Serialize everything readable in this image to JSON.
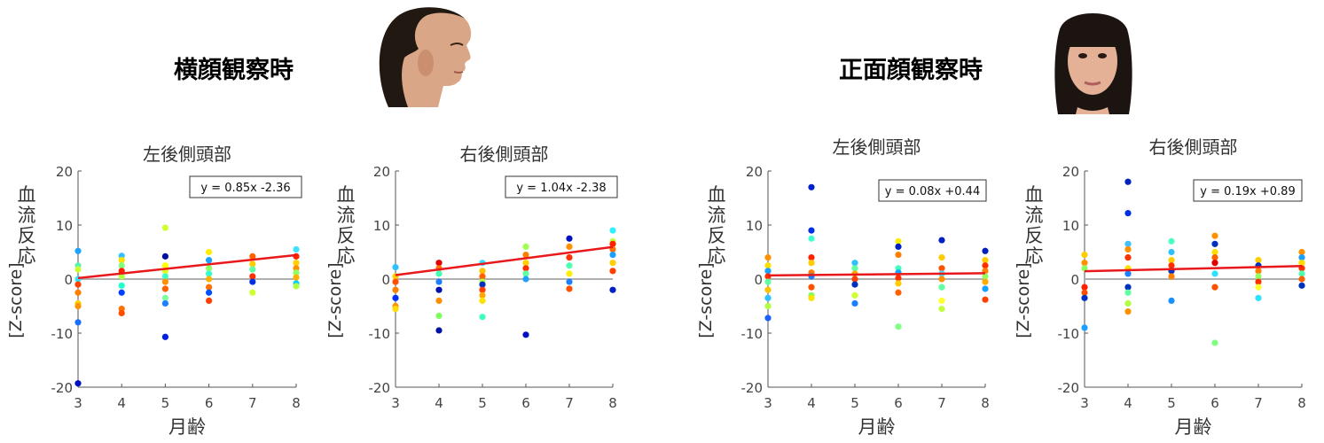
{
  "conditions": [
    {
      "title": "横顔観察時",
      "photo": "profile-face-photo"
    },
    {
      "title": "正面顔観察時",
      "photo": "frontal-face-photo"
    }
  ],
  "colors": {
    "regression": "#e8181b",
    "zero_line": "#b0b0b0",
    "axis": "#555555",
    "text": "#444444"
  },
  "chart_data": [
    {
      "type": "scatter",
      "title": "左後側頭部",
      "xlabel": "月齢",
      "ylabel_top": "血流反応",
      "ylabel_bottom": "[Z-score]",
      "xlim": [
        3,
        8
      ],
      "ylim": [
        -20,
        20
      ],
      "xticks": [
        3,
        4,
        5,
        6,
        7,
        8
      ],
      "yticks": [
        -20,
        -10,
        0,
        10,
        20
      ],
      "equation": "y = 0.85x -2.36",
      "regression": {
        "slope": 0.85,
        "intercept": -2.36
      },
      "points": [
        [
          3,
          5.2,
          "#1aa3ff"
        ],
        [
          3,
          2.5,
          "#5cf0b0"
        ],
        [
          3,
          1.8,
          "#c9ff30"
        ],
        [
          3,
          0,
          "#33e0ff"
        ],
        [
          3,
          -1,
          "#ff4000"
        ],
        [
          3,
          -2.5,
          "#ff8000"
        ],
        [
          3,
          -4.5,
          "#ffd000"
        ],
        [
          3,
          -5,
          "#ff9000"
        ],
        [
          3,
          -8,
          "#1a6fff"
        ],
        [
          3,
          -19.3,
          "#0010c0"
        ],
        [
          4,
          4.3,
          "#33c0ff"
        ],
        [
          4,
          3.5,
          "#ffe000"
        ],
        [
          4,
          2.5,
          "#80ff80"
        ],
        [
          4,
          1.5,
          "#ff2000"
        ],
        [
          4,
          0.5,
          "#b0ff40"
        ],
        [
          4,
          -1.2,
          "#20ffd0"
        ],
        [
          4,
          -2.5,
          "#0040ff"
        ],
        [
          4,
          -5.5,
          "#ff7000"
        ],
        [
          4,
          -6.3,
          "#ff5000"
        ],
        [
          5,
          9.5,
          "#d0ff30"
        ],
        [
          5,
          4.2,
          "#0010a0"
        ],
        [
          5,
          2.5,
          "#ffff00"
        ],
        [
          5,
          1.5,
          "#e0ff20"
        ],
        [
          5,
          0.5,
          "#40ffc0"
        ],
        [
          5,
          -0.5,
          "#ff9000"
        ],
        [
          5,
          -1.8,
          "#ff6000"
        ],
        [
          5,
          -3.5,
          "#80ffa0"
        ],
        [
          5,
          -4.5,
          "#1a80ff"
        ],
        [
          5,
          -10.7,
          "#0020e0"
        ],
        [
          6,
          5,
          "#ffee00"
        ],
        [
          6,
          3.5,
          "#1aa0ff"
        ],
        [
          6,
          2,
          "#90ff60"
        ],
        [
          6,
          1,
          "#30ffd0"
        ],
        [
          6,
          0,
          "#ffb000"
        ],
        [
          6,
          -1.5,
          "#ff7000"
        ],
        [
          6,
          -2.5,
          "#0050ff"
        ],
        [
          6,
          -4,
          "#ff4000"
        ],
        [
          7,
          4.2,
          "#ff6000"
        ],
        [
          7,
          2.8,
          "#ffcc00"
        ],
        [
          7,
          1.8,
          "#60ffa0"
        ],
        [
          7,
          0.5,
          "#ff3000"
        ],
        [
          7,
          -0.5,
          "#0030e0"
        ],
        [
          7,
          -2.5,
          "#d0ff30"
        ],
        [
          8,
          5.5,
          "#40e0ff"
        ],
        [
          8,
          4.2,
          "#ff2000"
        ],
        [
          8,
          3,
          "#ffd000"
        ],
        [
          8,
          2,
          "#ff9000"
        ],
        [
          8,
          1.2,
          "#90ff60"
        ],
        [
          8,
          0.3,
          "#ffb000"
        ],
        [
          8,
          -0.8,
          "#00d0ff"
        ],
        [
          8,
          -1.3,
          "#b0ff40"
        ]
      ]
    },
    {
      "type": "scatter",
      "title": "右後側頭部",
      "xlabel": "",
      "ylabel_top": "血流反応",
      "ylabel_bottom": "[Z-score]",
      "xlim": [
        3,
        8
      ],
      "ylim": [
        -20,
        20
      ],
      "xticks": [
        3,
        4,
        5,
        6,
        7,
        8
      ],
      "yticks": [
        -20,
        -10,
        0,
        10,
        20
      ],
      "equation": "y = 1.04x -2.38",
      "regression": {
        "slope": 1.04,
        "intercept": -2.38
      },
      "points": [
        [
          3,
          2.2,
          "#30c0ff"
        ],
        [
          3,
          0.5,
          "#ffcc00"
        ],
        [
          3,
          -0.5,
          "#ff5000"
        ],
        [
          3,
          -2,
          "#ff8000"
        ],
        [
          3,
          -3.5,
          "#0030ff"
        ],
        [
          3,
          -5,
          "#ff9000"
        ],
        [
          3,
          -5.5,
          "#ffdd00"
        ],
        [
          4,
          3,
          "#e00000"
        ],
        [
          4,
          2,
          "#ff7000"
        ],
        [
          4,
          1,
          "#40ffb0"
        ],
        [
          4,
          -0.5,
          "#1a80ff"
        ],
        [
          4,
          -2,
          "#0010b0"
        ],
        [
          4,
          -4,
          "#ff9000"
        ],
        [
          4,
          -6.8,
          "#80ff60"
        ],
        [
          4,
          -9.5,
          "#0010a0"
        ],
        [
          5,
          3,
          "#30e0ff"
        ],
        [
          5,
          1.5,
          "#ffc000"
        ],
        [
          5,
          0.5,
          "#ff6000"
        ],
        [
          5,
          -0.5,
          "#b0ff40"
        ],
        [
          5,
          -1,
          "#0030c0"
        ],
        [
          5,
          -2,
          "#ff4000"
        ],
        [
          5,
          -3,
          "#ffaa00"
        ],
        [
          5,
          -4,
          "#ffe000"
        ],
        [
          5,
          -7,
          "#40ffc0"
        ],
        [
          6,
          6,
          "#a0ff50"
        ],
        [
          6,
          4.5,
          "#ff8000"
        ],
        [
          6,
          3,
          "#ffd000"
        ],
        [
          6,
          2,
          "#ff3000"
        ],
        [
          6,
          1,
          "#60ffa0"
        ],
        [
          6,
          0,
          "#20a0ff"
        ],
        [
          6,
          -10.3,
          "#0010c0"
        ],
        [
          7,
          7.5,
          "#0010c0"
        ],
        [
          7,
          6,
          "#ff9000"
        ],
        [
          7,
          4,
          "#ff3000"
        ],
        [
          7,
          2.5,
          "#50ffb0"
        ],
        [
          7,
          1,
          "#ffee00"
        ],
        [
          7,
          -0.5,
          "#1a80ff"
        ],
        [
          7,
          -1.8,
          "#ff5000"
        ],
        [
          8,
          9,
          "#30f0ff"
        ],
        [
          8,
          7,
          "#c0ff40"
        ],
        [
          8,
          6.5,
          "#ff2000"
        ],
        [
          8,
          5.5,
          "#ff7000"
        ],
        [
          8,
          4.5,
          "#1aa0ff"
        ],
        [
          8,
          3,
          "#ffd000"
        ],
        [
          8,
          1.5,
          "#ff4000"
        ],
        [
          8,
          -2,
          "#0020c0"
        ]
      ]
    },
    {
      "type": "scatter",
      "title": "左後側頭部",
      "xlabel": "月齢",
      "ylabel_top": "血流反応",
      "ylabel_bottom": "[Z-score]",
      "xlim": [
        3,
        8
      ],
      "ylim": [
        -20,
        20
      ],
      "xticks": [
        3,
        4,
        5,
        6,
        7,
        8
      ],
      "yticks": [
        -20,
        -10,
        0,
        10,
        20
      ],
      "equation": "y = 0.08x +0.44",
      "regression": {
        "slope": 0.08,
        "intercept": 0.44
      },
      "points": [
        [
          3,
          4,
          "#ff9000"
        ],
        [
          3,
          2.5,
          "#ffdd00"
        ],
        [
          3,
          1.5,
          "#1aa0ff"
        ],
        [
          3,
          0.5,
          "#ff3000"
        ],
        [
          3,
          -0.5,
          "#60ffa0"
        ],
        [
          3,
          -2,
          "#ffc000"
        ],
        [
          3,
          -3.5,
          "#30c0ff"
        ],
        [
          3,
          -5,
          "#b0ff40"
        ],
        [
          3,
          -7.2,
          "#1a60ff"
        ],
        [
          4,
          17,
          "#0020d0"
        ],
        [
          4,
          9,
          "#0030e0"
        ],
        [
          4,
          7.5,
          "#40ffd0"
        ],
        [
          4,
          4,
          "#ff2000"
        ],
        [
          4,
          3,
          "#ffcc00"
        ],
        [
          4,
          1.2,
          "#ff8000"
        ],
        [
          4,
          0.5,
          "#1a80ff"
        ],
        [
          4,
          -1.5,
          "#ff5000"
        ],
        [
          4,
          -3,
          "#80ff60"
        ],
        [
          4,
          -3.5,
          "#ffe000"
        ],
        [
          5,
          3,
          "#30c0ff"
        ],
        [
          5,
          2,
          "#60ffa0"
        ],
        [
          5,
          1,
          "#ffaa00"
        ],
        [
          5,
          0,
          "#ff4000"
        ],
        [
          5,
          -1,
          "#0030c0"
        ],
        [
          5,
          -3,
          "#d0ff30"
        ],
        [
          5,
          -4.5,
          "#1a80ff"
        ],
        [
          6,
          7,
          "#ffee00"
        ],
        [
          6,
          6,
          "#0020c0"
        ],
        [
          6,
          4.5,
          "#ff8000"
        ],
        [
          6,
          2,
          "#40ffc0"
        ],
        [
          6,
          1.2,
          "#1aa0ff"
        ],
        [
          6,
          0.2,
          "#ff3000"
        ],
        [
          6,
          -0.8,
          "#ffcc00"
        ],
        [
          6,
          -2.5,
          "#ff6000"
        ],
        [
          6,
          -8.8,
          "#80ff80"
        ],
        [
          7,
          7.2,
          "#0020c0"
        ],
        [
          7,
          4,
          "#ffcc00"
        ],
        [
          7,
          2,
          "#ff5000"
        ],
        [
          7,
          1,
          "#40e0ff"
        ],
        [
          7,
          0,
          "#ff9000"
        ],
        [
          7,
          -1.5,
          "#60ffa0"
        ],
        [
          7,
          -4,
          "#ffff30"
        ],
        [
          7,
          -5.5,
          "#c0ff40"
        ],
        [
          8,
          5.2,
          "#0020c0"
        ],
        [
          8,
          3.5,
          "#ffcc00"
        ],
        [
          8,
          2.5,
          "#ff3000"
        ],
        [
          8,
          1.5,
          "#ff8000"
        ],
        [
          8,
          0.5,
          "#90ff60"
        ],
        [
          8,
          -0.5,
          "#ffaa00"
        ],
        [
          8,
          -1.8,
          "#1aa0ff"
        ],
        [
          8,
          -3.8,
          "#ff4000"
        ]
      ]
    },
    {
      "type": "scatter",
      "title": "右後側頭部",
      "xlabel": "月齢",
      "ylabel_top": "血流反応",
      "ylabel_bottom": "[Z-score]",
      "xlim": [
        3,
        8
      ],
      "ylim": [
        -20,
        20
      ],
      "xticks": [
        3,
        4,
        5,
        6,
        7,
        8
      ],
      "yticks": [
        -20,
        -10,
        0,
        10,
        20
      ],
      "equation": "y = 0.19x +0.89",
      "regression": {
        "slope": 0.19,
        "intercept": 0.89
      },
      "points": [
        [
          3,
          4.5,
          "#ffcc00"
        ],
        [
          3,
          3,
          "#ff9000"
        ],
        [
          3,
          2,
          "#90ff60"
        ],
        [
          3,
          -1.5,
          "#ff2000"
        ],
        [
          3,
          -2.5,
          "#ff5000"
        ],
        [
          3,
          -3.5,
          "#0030c0"
        ],
        [
          3,
          -9,
          "#1aa0ff"
        ],
        [
          4,
          18,
          "#0020c0"
        ],
        [
          4,
          12.2,
          "#0030e0"
        ],
        [
          4,
          6.5,
          "#40c0ff"
        ],
        [
          4,
          5.5,
          "#ff9000"
        ],
        [
          4,
          4,
          "#ff3000"
        ],
        [
          4,
          2,
          "#ffdd00"
        ],
        [
          4,
          1,
          "#1a80ff"
        ],
        [
          4,
          -1.5,
          "#0030c0"
        ],
        [
          4,
          -2.5,
          "#60ffa0"
        ],
        [
          4,
          -4.5,
          "#b0ff40"
        ],
        [
          4,
          -6,
          "#ff9000"
        ],
        [
          5,
          7,
          "#50ffc0"
        ],
        [
          5,
          5,
          "#30c0ff"
        ],
        [
          5,
          3.5,
          "#ffcc00"
        ],
        [
          5,
          2.5,
          "#ff3000"
        ],
        [
          5,
          1.5,
          "#0030c0"
        ],
        [
          5,
          0.5,
          "#ff8000"
        ],
        [
          5,
          -4,
          "#1a90ff"
        ],
        [
          6,
          8,
          "#ff9000"
        ],
        [
          6,
          6.5,
          "#0030c0"
        ],
        [
          6,
          5,
          "#ffdd00"
        ],
        [
          6,
          4,
          "#ff6000"
        ],
        [
          6,
          3,
          "#e00000"
        ],
        [
          6,
          1,
          "#30e0ff"
        ],
        [
          6,
          -1.5,
          "#ff5000"
        ],
        [
          6,
          -11.8,
          "#80ff80"
        ],
        [
          7,
          3.5,
          "#ffcc00"
        ],
        [
          7,
          2.5,
          "#0030c0"
        ],
        [
          7,
          1.5,
          "#ff8000"
        ],
        [
          7,
          0.5,
          "#90ff60"
        ],
        [
          7,
          -0.5,
          "#ff3000"
        ],
        [
          7,
          -1.5,
          "#ffff30"
        ],
        [
          7,
          -3.5,
          "#30e0ff"
        ],
        [
          8,
          5,
          "#ff9000"
        ],
        [
          8,
          4,
          "#1aa0ff"
        ],
        [
          8,
          3,
          "#ffdd00"
        ],
        [
          8,
          2,
          "#ff3000"
        ],
        [
          8,
          1,
          "#50ffb0"
        ],
        [
          8,
          0,
          "#ff6000"
        ],
        [
          8,
          -1.2,
          "#0030c0"
        ]
      ]
    }
  ]
}
